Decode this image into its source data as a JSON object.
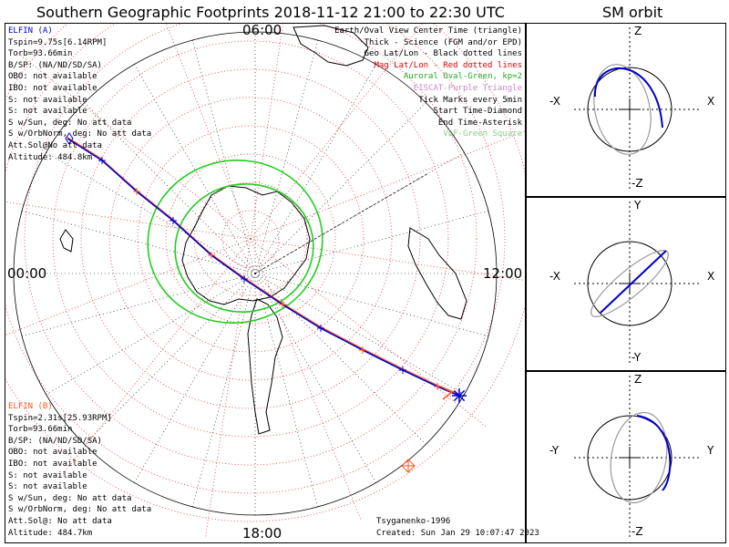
{
  "header": {
    "title": "Southern Geographic Footprints 2018-11-12 21:00 to 22:30 UTC",
    "orbit_title": "SM orbit"
  },
  "map": {
    "time_labels": {
      "top": "06:00",
      "left": "00:00",
      "right": "12:00",
      "bottom": "18:00"
    },
    "legend": [
      {
        "text": "Earth/Oval View Center Time (triangle)",
        "color": "#000000"
      },
      {
        "text": "Thick - Science (FGM and/or EPD)",
        "color": "#000000"
      },
      {
        "text": "Geo Lat/Lon - Black dotted lines",
        "color": "#000000"
      },
      {
        "text": "Mag Lat/Lon - Red dotted lines",
        "color": "#e00000"
      },
      {
        "text": "Auroral Oval-Green, kp=2",
        "color": "#22aa22"
      },
      {
        "text": "EISCAT-Purple Triangle",
        "color": "#cc88cc"
      },
      {
        "text": "Tick Marks every 5min",
        "color": "#000000"
      },
      {
        "text": "Start Time-Diamond",
        "color": "#000000"
      },
      {
        "text": "End Time-Asterisk",
        "color": "#000000"
      },
      {
        "text": "VLF-Green Square",
        "color": "#88cc88"
      }
    ],
    "elfin_a": {
      "name": "ELFIN (A)",
      "color": "#0000cc",
      "lines": [
        "Tspin=9.75s[6.14RPM]",
        "Torb=93.66min",
        "B/SP: (NA/ND/SD/SA)",
        "OBO: not available",
        "IBO: not available",
        "S: not available",
        "S: not available",
        "S w/Sun, deg: No att data",
        "S w/OrbNorm, deg: No att data",
        "Att.Sol@No att data",
        "Altitude: 484.8km"
      ]
    },
    "elfin_b": {
      "name": "ELFIN (B)",
      "color": "#ff5522",
      "lines": [
        "Tspin=2.31s[25.93RPM]",
        "Torb=93.66min",
        "B/SP: (NA/ND/SD/SA)",
        "OBO: not available",
        "IBO: not available",
        "S: not available",
        "S: not available",
        "S w/Sun, deg: No att data",
        "S w/OrbNorm, deg: No att data",
        "Att.Sol@: No att data",
        "Altitude: 484.7km"
      ]
    },
    "credits": [
      "Tsyganenko-1996",
      "Created: Sun Jan 29 10:07:47 2023"
    ]
  },
  "orbit_panels": [
    {
      "name": "xz",
      "top": "Z",
      "bottom": "-Z",
      "left": "-X",
      "right": "X"
    },
    {
      "name": "xy",
      "top": "Y",
      "bottom": "-Y",
      "left": "-X",
      "right": "X"
    },
    {
      "name": "yz",
      "top": "Z",
      "bottom": "-Z",
      "left": "-Y",
      "right": "Y"
    }
  ],
  "chart_data": {
    "type": "polar-map",
    "title": "Southern Geographic Footprints 2018-11-12 21:00 to 22:30 UTC",
    "center": "South Pole",
    "grid_rings": 10,
    "meridians": 12,
    "time_ticks": [
      "06:00",
      "12:00",
      "18:00",
      "00:00"
    ],
    "series": [
      {
        "name": "ELFIN (A) footprint",
        "color": "#0000cc"
      },
      {
        "name": "ELFIN (B) footprint",
        "color": "#ff5522"
      },
      {
        "name": "Auroral oval kp=2",
        "color": "#22cc22"
      }
    ]
  }
}
